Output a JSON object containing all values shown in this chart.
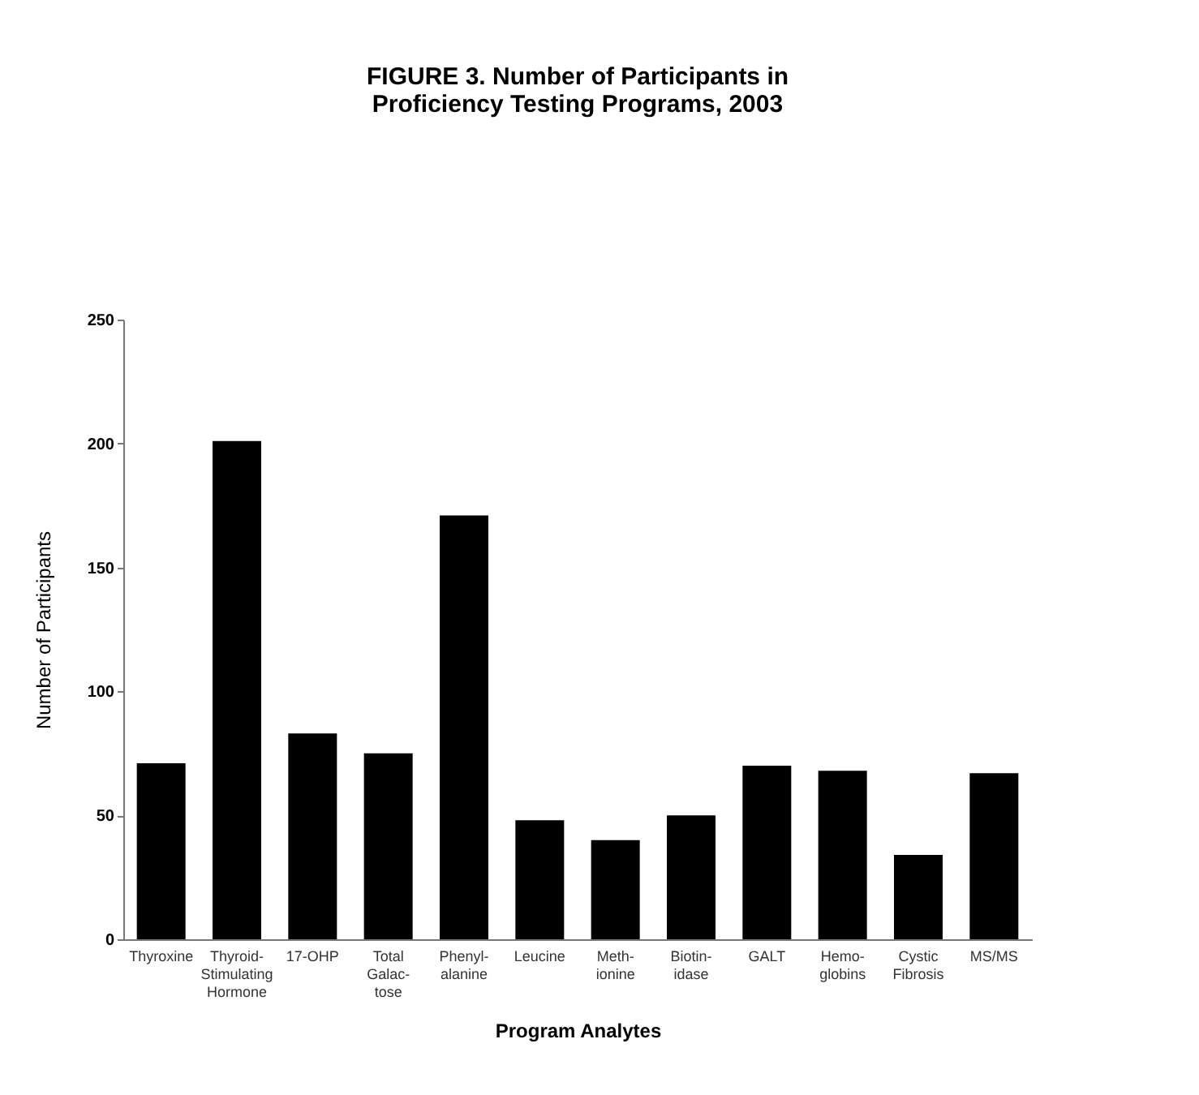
{
  "chart_data": {
    "type": "bar",
    "title": "FIGURE 3. Number of Participants in\nProficiency Testing Programs, 2003",
    "xlabel": "Program Analytes",
    "ylabel": "Number of Participants",
    "categories": [
      "Thyroxine",
      "Thyroid-\nStimulating\nHormone",
      "17-OHP",
      "Total\nGalac-\ntose",
      "Phenyl-\nalanine",
      "Leucine",
      "Meth-\nionine",
      "Biotin-\nidase",
      "GALT",
      "Hemo-\nglobins",
      "Cystic\nFibrosis",
      "MS/MS"
    ],
    "values": [
      71,
      201,
      83,
      75,
      171,
      48,
      40,
      50,
      70,
      68,
      34,
      67
    ],
    "color": "#000000",
    "ylim": [
      0,
      250
    ],
    "yticks": [
      0,
      50,
      100,
      150,
      200,
      250
    ],
    "grid": false
  }
}
